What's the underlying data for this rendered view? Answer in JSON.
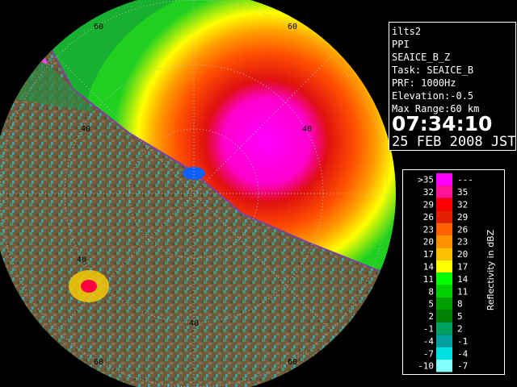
{
  "info": {
    "lines": [
      "ilts2",
      "PPI",
      "SEAICE_B_Z",
      "Task: SEAICE_B",
      "PRF: 1000Hz",
      "Elevation:-0.5",
      "Max Range:60 km"
    ],
    "time": "07:34:10",
    "date": "25 FEB 2008 JST"
  },
  "range_ring_labels": [
    "40",
    "60"
  ],
  "legend": {
    "title": "Reflectivity in dBZ",
    "rows": [
      {
        "low": ">35",
        "high": "---",
        "color": "#ff00ff"
      },
      {
        "low": "32",
        "high": "35",
        "color": "#ff1493"
      },
      {
        "low": "29",
        "high": "32",
        "color": "#ff0000"
      },
      {
        "low": "26",
        "high": "29",
        "color": "#e02000"
      },
      {
        "low": "23",
        "high": "26",
        "color": "#ff6000"
      },
      {
        "low": "20",
        "high": "23",
        "color": "#ff9000"
      },
      {
        "low": "17",
        "high": "20",
        "color": "#ffc000"
      },
      {
        "low": "14",
        "high": "17",
        "color": "#ffff00"
      },
      {
        "low": "11",
        "high": "14",
        "color": "#00ff00"
      },
      {
        "low": "8",
        "high": "11",
        "color": "#00d000"
      },
      {
        "low": "5",
        "high": "8",
        "color": "#00a000"
      },
      {
        "low": "2",
        "high": "5",
        "color": "#008000"
      },
      {
        "low": "-1",
        "high": "2",
        "color": "#00a060"
      },
      {
        "low": "-4",
        "high": "-1",
        "color": "#00a0a0"
      },
      {
        "low": "-7",
        "high": "-4",
        "color": "#00e0e0"
      },
      {
        "low": "-10",
        "high": "-7",
        "color": "#80ffff"
      }
    ]
  }
}
